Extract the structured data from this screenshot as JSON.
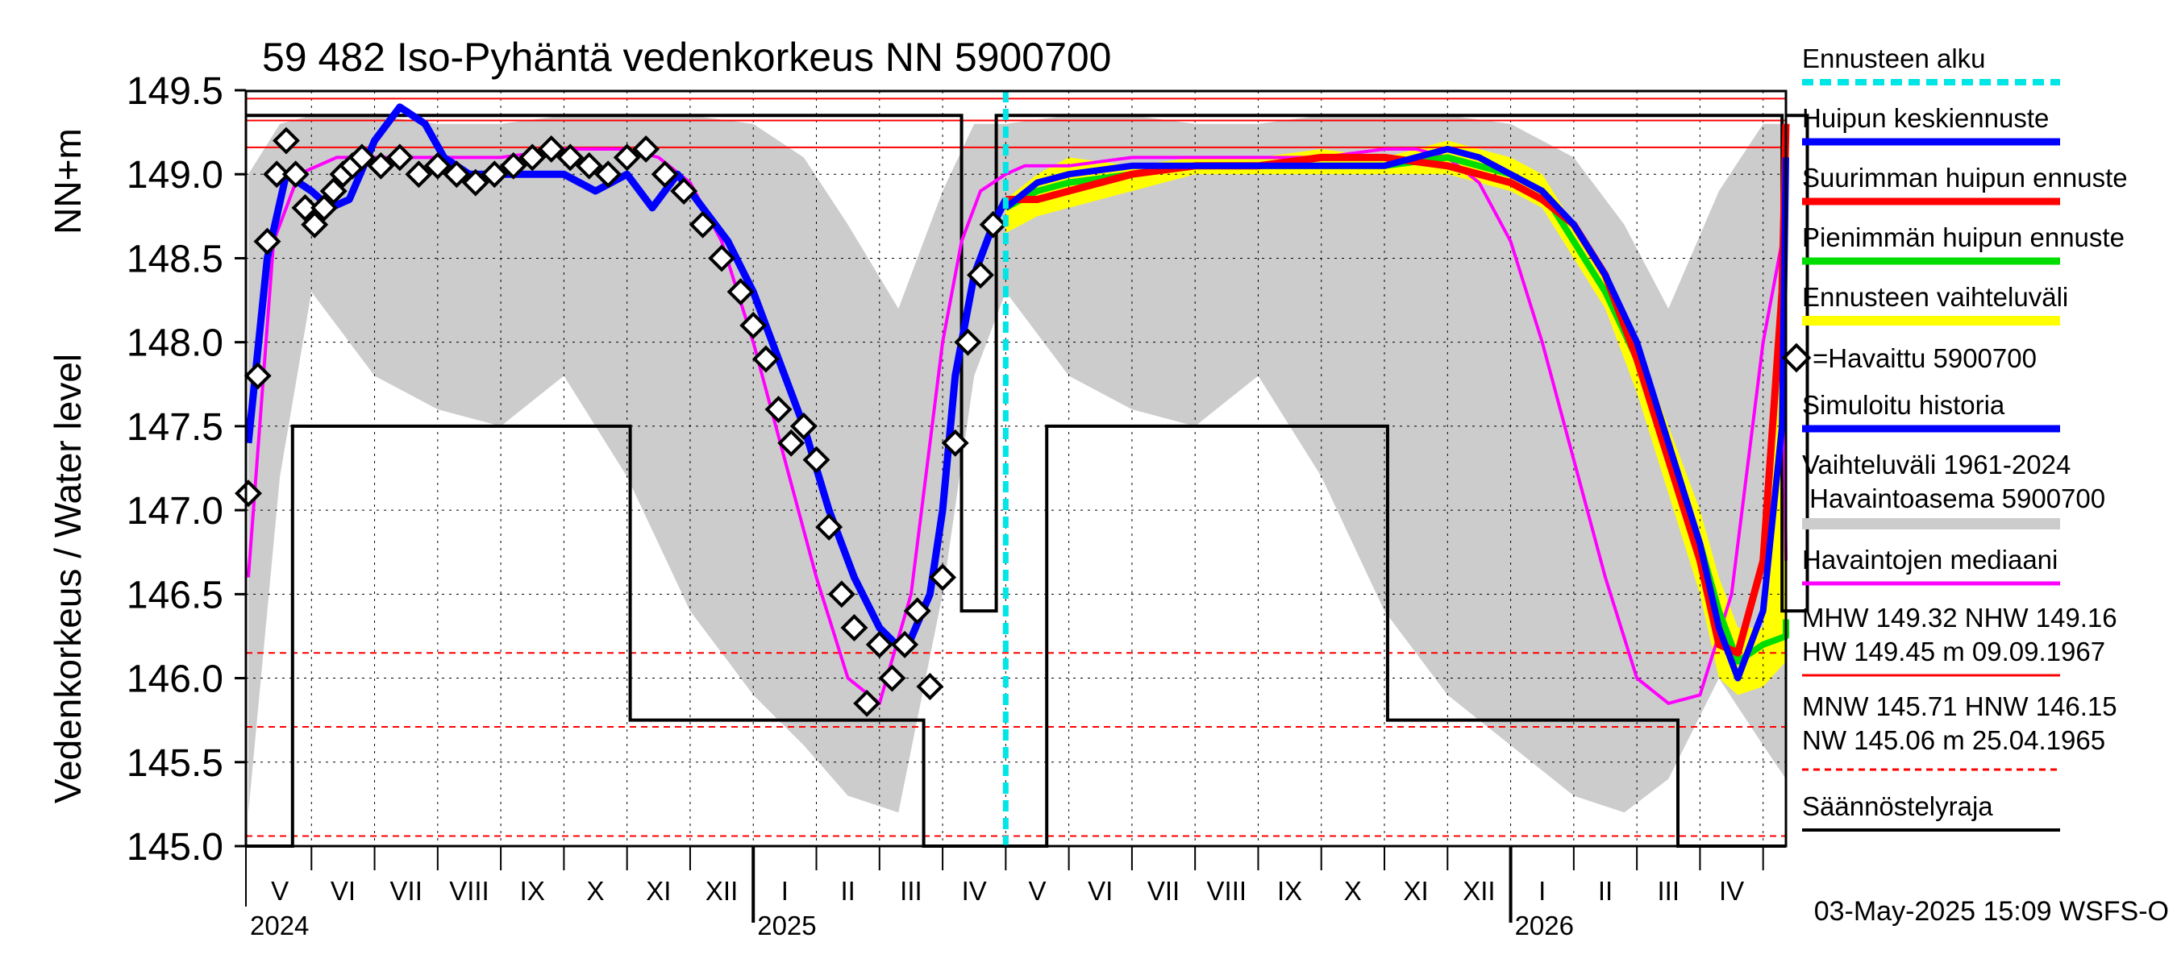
{
  "chart_data": {
    "type": "line",
    "title": "59 482 Iso-Pyhäntä vedenkorkeus NN 5900700",
    "ylabel": "Vedenkorkeus / Water level",
    "ylabel_unit": "NN+m",
    "ylim": [
      145.0,
      149.5
    ],
    "yticks": [
      "145.0",
      "145.5",
      "146.0",
      "146.5",
      "147.0",
      "147.5",
      "148.0",
      "148.5",
      "149.0",
      "149.5"
    ],
    "months": [
      "V",
      "VI",
      "VII",
      "VIII",
      "IX",
      "X",
      "XI",
      "XII",
      "I",
      "II",
      "III",
      "IV",
      "V",
      "VI",
      "VII",
      "VIII",
      "IX",
      "X",
      "XI",
      "XII",
      "I",
      "II",
      "III",
      "IV"
    ],
    "years": [
      "2024",
      "2025",
      "2026"
    ],
    "forecast_start_month": 12.0,
    "reference_levels": {
      "HW": 149.45,
      "MHW": 149.32,
      "NHW": 149.16,
      "HNW": 146.15,
      "MNW": 145.71,
      "NW": 145.06
    },
    "regulation_limit": {
      "upper": {
        "from": 149.35,
        "gaps": [
          [
            11.3,
            11.85
          ],
          [
            24.3,
            24.7
          ]
        ],
        "low_during_gaps": 146.4
      },
      "lower": [
        [
          0,
          145.0
        ],
        [
          0.7,
          147.5
        ],
        [
          6.05,
          145.75
        ],
        [
          10.7,
          145.0
        ],
        [
          12.65,
          147.5
        ],
        [
          18.05,
          145.75
        ],
        [
          22.65,
          145.0
        ],
        [
          25.2,
          145.0
        ]
      ]
    },
    "series": [
      {
        "name": "Vaihteluväli 1961-2024 Havaintoasema 5900700",
        "kind": "band",
        "x": [
          0,
          0.5,
          1,
          2,
          3,
          4,
          5,
          6,
          7,
          8,
          8.8,
          9.5,
          10.3,
          11.0,
          11.5,
          12,
          13,
          14,
          15,
          16,
          17,
          18,
          19,
          20,
          21,
          21.8,
          22.5,
          23.3,
          24.0,
          24.5,
          25.2
        ],
        "upper": [
          149.0,
          149.3,
          149.35,
          149.35,
          149.3,
          149.3,
          149.35,
          149.35,
          149.35,
          149.3,
          149.1,
          148.7,
          148.2,
          148.9,
          149.3,
          149.3,
          149.35,
          149.35,
          149.3,
          149.3,
          149.35,
          149.35,
          149.35,
          149.3,
          149.1,
          148.7,
          148.2,
          148.9,
          149.3,
          149.3,
          149.0
        ],
        "lower": [
          145.2,
          147.2,
          148.3,
          147.8,
          147.6,
          147.5,
          147.8,
          147.2,
          146.4,
          145.9,
          145.6,
          145.3,
          145.2,
          146.5,
          147.8,
          148.3,
          147.8,
          147.6,
          147.5,
          147.8,
          147.2,
          146.4,
          145.9,
          145.6,
          145.3,
          145.2,
          145.4,
          146.0,
          145.6,
          145.4,
          145.3
        ]
      },
      {
        "name": "Ennusteen vaihteluväli",
        "kind": "band",
        "color": "#ffff00",
        "x": [
          12.0,
          12.5,
          13,
          14,
          15,
          16,
          17,
          18,
          19,
          20,
          20.5,
          21,
          21.5,
          22,
          22.5,
          23,
          23.3,
          23.6,
          24.0,
          24.4,
          24.6
        ],
        "upper": [
          148.85,
          149.0,
          149.1,
          149.05,
          149.1,
          149.1,
          149.15,
          149.1,
          149.2,
          149.1,
          149.0,
          148.7,
          148.4,
          148.0,
          147.5,
          147.0,
          146.6,
          146.3,
          146.3,
          148.5,
          149.2
        ],
        "lower": [
          148.65,
          148.75,
          148.8,
          148.9,
          149.0,
          149.0,
          149.0,
          149.0,
          149.0,
          148.9,
          148.8,
          148.5,
          148.2,
          147.7,
          147.1,
          146.5,
          146.0,
          145.9,
          145.95,
          146.1,
          146.3
        ]
      },
      {
        "name": "Havaintojen mediaani",
        "color": "#ff00ff",
        "x": [
          0,
          0.4,
          0.8,
          1.4,
          2,
          3,
          4,
          5,
          6,
          6.5,
          7,
          7.5,
          8,
          8.5,
          9,
          9.5,
          10,
          10.5,
          11,
          11.3,
          11.6,
          12,
          12.3,
          12.7,
          13,
          14,
          15,
          16,
          17,
          18,
          18.5,
          19,
          19.5,
          20,
          20.5,
          21,
          21.5,
          22,
          22.5,
          23,
          23.5,
          24,
          24.3,
          24.6
        ],
        "y": [
          146.6,
          148.6,
          149.0,
          149.1,
          149.1,
          149.1,
          149.1,
          149.15,
          149.15,
          149.1,
          148.95,
          148.6,
          148.0,
          147.3,
          146.6,
          146.0,
          145.85,
          146.5,
          148.0,
          148.6,
          148.9,
          149.0,
          149.05,
          149.05,
          149.05,
          149.1,
          149.1,
          149.1,
          149.1,
          149.15,
          149.15,
          149.1,
          148.95,
          148.6,
          148.0,
          147.3,
          146.6,
          146.0,
          145.85,
          145.9,
          146.5,
          148.0,
          148.6,
          146.7
        ]
      },
      {
        "name": "Simuloitu historia",
        "color": "#0000ff",
        "x": [
          0,
          0.3,
          0.6,
          1,
          1.3,
          1.6,
          2,
          2.4,
          2.8,
          3.1,
          3.5,
          4,
          4.5,
          5,
          5.5,
          6,
          6.4,
          6.8,
          7.2,
          7.6,
          8,
          8.4,
          8.8,
          9.2,
          9.6,
          10,
          10.4,
          10.8,
          11.0,
          11.2,
          11.5,
          11.8,
          12.0
        ],
        "y": [
          147.4,
          148.5,
          149.0,
          148.9,
          148.8,
          148.85,
          149.2,
          149.4,
          149.3,
          149.1,
          149.0,
          149.0,
          149.0,
          149.0,
          148.9,
          149.0,
          148.8,
          149.0,
          148.8,
          148.6,
          148.3,
          147.9,
          147.5,
          147.0,
          146.6,
          146.3,
          146.15,
          146.5,
          147.0,
          147.8,
          148.4,
          148.7,
          148.85
        ]
      },
      {
        "name": "Havaittu 5900700",
        "kind": "markers",
        "x": [
          0,
          0.15,
          0.3,
          0.45,
          0.6,
          0.75,
          0.9,
          1.05,
          1.2,
          1.35,
          1.5,
          1.65,
          1.8,
          2.1,
          2.4,
          2.7,
          3.0,
          3.3,
          3.6,
          3.9,
          4.2,
          4.5,
          4.8,
          5.1,
          5.4,
          5.7,
          6.0,
          6.3,
          6.6,
          6.9,
          7.2,
          7.5,
          7.8,
          8.0,
          8.2,
          8.4,
          8.6,
          8.8,
          9.0,
          9.2,
          9.4,
          9.6,
          9.8,
          10.0,
          10.2,
          10.4,
          10.6,
          10.8,
          11.0,
          11.2,
          11.4,
          11.6,
          11.8
        ],
        "y": [
          147.1,
          147.8,
          148.6,
          149.0,
          149.2,
          149.0,
          148.8,
          148.7,
          148.8,
          148.9,
          149.0,
          149.05,
          149.1,
          149.05,
          149.1,
          149.0,
          149.05,
          149.0,
          148.95,
          149.0,
          149.05,
          149.1,
          149.15,
          149.1,
          149.05,
          149.0,
          149.1,
          149.15,
          149.0,
          148.9,
          148.7,
          148.5,
          148.3,
          148.1,
          147.9,
          147.6,
          147.4,
          147.5,
          147.3,
          146.9,
          146.5,
          146.3,
          145.85,
          146.2,
          146.0,
          146.2,
          146.4,
          145.95,
          146.6,
          147.4,
          148.0,
          148.4,
          148.7
        ]
      },
      {
        "name": "Pienimmän huipun ennuste",
        "color": "#00dd00",
        "x": [
          12.0,
          12.5,
          13,
          14,
          15,
          16,
          17,
          18,
          19,
          20,
          20.5,
          21,
          21.5,
          22,
          22.5,
          23,
          23.3,
          23.6,
          24.0,
          24.4,
          24.6
        ],
        "y": [
          148.8,
          148.9,
          148.95,
          149.0,
          149.05,
          149.05,
          149.05,
          149.05,
          149.1,
          149.0,
          148.9,
          148.6,
          148.3,
          147.9,
          147.3,
          146.8,
          146.4,
          146.1,
          146.2,
          146.25,
          146.35
        ]
      },
      {
        "name": "Suurimman huipun ennuste",
        "color": "#ff0000",
        "x": [
          12.0,
          12.5,
          13,
          14,
          15,
          16,
          17,
          18,
          19,
          20,
          20.5,
          21,
          21.5,
          22,
          22.5,
          23,
          23.3,
          23.6,
          24.0,
          24.3,
          24.6
        ],
        "y": [
          148.85,
          148.85,
          148.9,
          149.0,
          149.05,
          149.05,
          149.1,
          149.1,
          149.05,
          148.95,
          148.85,
          148.7,
          148.4,
          147.9,
          147.3,
          146.7,
          146.2,
          146.15,
          146.7,
          148.3,
          149.3
        ]
      },
      {
        "name": "Huipun keskiennuste",
        "color": "#0000ff",
        "x": [
          12.0,
          12.5,
          13,
          14,
          15,
          16,
          17,
          18,
          19,
          19.5,
          20,
          20.5,
          21,
          21.5,
          22,
          22.5,
          23,
          23.3,
          23.6,
          24.0,
          24.3,
          24.6
        ],
        "y": [
          148.8,
          148.95,
          149.0,
          149.05,
          149.05,
          149.05,
          149.05,
          149.05,
          149.15,
          149.1,
          149.0,
          148.9,
          148.7,
          148.4,
          148.0,
          147.4,
          146.8,
          146.3,
          146.0,
          146.4,
          147.5,
          149.1
        ]
      }
    ]
  },
  "legend": {
    "forecast_start": "Ennusteen alku",
    "mean_peak": "Huipun keskiennuste",
    "max_peak": "Suurimman huipun ennuste",
    "min_peak": "Pienimmän huipun ennuste",
    "forecast_range": "Ennusteen vaihteluväli",
    "observed": "=Havaittu 5900700",
    "simulated": "Simuloitu historia",
    "range_line1": "Vaihteluväli 1961-2024",
    "range_line2": " Havaintoasema 5900700",
    "median": "Havaintojen mediaani",
    "hw_line1": "MHW 149.32 NHW 149.16",
    "hw_line2": "HW 149.45 m 09.09.1967",
    "nw_line1": "MNW 145.71 HNW 146.15",
    "nw_line2": "NW 145.06 m 25.04.1965",
    "regulation": "Säännöstelyraja"
  },
  "footer": "03-May-2025 15:09 WSFS-O",
  "colors": {
    "band": "#cccccc",
    "forecast_band": "#ffff00",
    "median": "#ff00ff",
    "simulated": "#0000ff",
    "max": "#ff0000",
    "min": "#00dd00",
    "forecast_start": "#00e5e5",
    "ref_line": "#ff0000"
  }
}
